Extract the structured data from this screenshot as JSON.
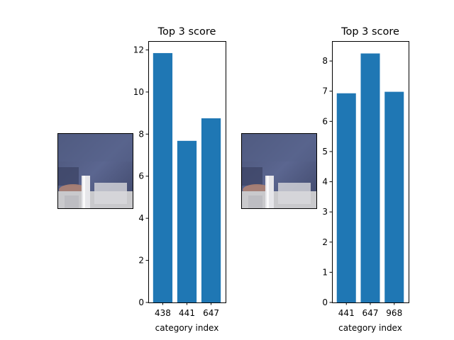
{
  "figure": {
    "background": "#ffffff",
    "bar_color": "#1f77b4"
  },
  "chart_data": [
    {
      "type": "bar",
      "title": "Top 3 score",
      "xlabel": "category index",
      "ylabel": "",
      "categories": [
        "438",
        "441",
        "647"
      ],
      "values": [
        11.85,
        7.68,
        8.75
      ],
      "ylim": [
        0,
        12.42
      ],
      "yticks": [
        0,
        2,
        4,
        6,
        8,
        10,
        12
      ],
      "grid": false,
      "legend": "none"
    },
    {
      "type": "bar",
      "title": "Top 3 score",
      "xlabel": "category index",
      "ylabel": "",
      "categories": [
        "441",
        "647",
        "968"
      ],
      "values": [
        6.93,
        8.25,
        6.98
      ],
      "ylim": [
        0,
        8.66
      ],
      "yticks": [
        0,
        1,
        2,
        3,
        4,
        5,
        6,
        7,
        8
      ],
      "grid": false,
      "legend": "none"
    }
  ],
  "thumbnails": [
    {
      "icon": "photo-thumbnail-icon",
      "content": "blurred photo: person in blue shirt behind a glass"
    },
    {
      "icon": "photo-thumbnail-icon",
      "content": "blurred photo: person in blue shirt behind a glass"
    }
  ]
}
